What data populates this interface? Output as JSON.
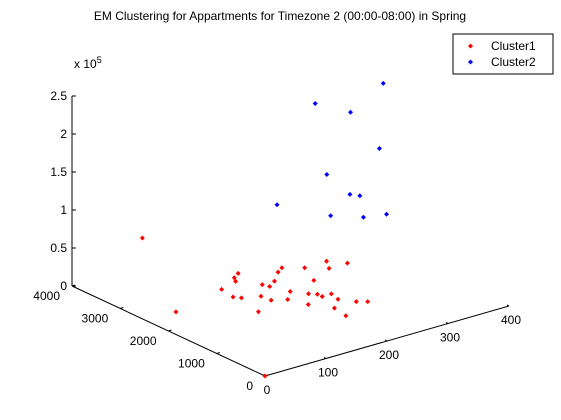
{
  "chart_data": {
    "type": "scatter",
    "dimensions": 3,
    "title": "EM Clustering for Appartments for Timezone 2 (00:00-08:00) in Spring",
    "z_multiplier_label": "x 10",
    "z_multiplier_exponent": "5",
    "xlim": [
      0,
      400
    ],
    "ylim": [
      0,
      4000
    ],
    "zlim": [
      0,
      250000
    ],
    "x_ticks": [
      "0",
      "100",
      "200",
      "300",
      "400"
    ],
    "y_ticks": [
      "0",
      "1000",
      "2000",
      "3000",
      "4000"
    ],
    "z_ticks": [
      "0",
      "0.5",
      "1",
      "1.5",
      "2",
      "2.5"
    ],
    "grid": false,
    "legend_position": "top-right",
    "series": [
      {
        "name": "Cluster1",
        "color": "#ff0000",
        "marker": "diamond",
        "points": [
          {
            "x": 0,
            "y": 0,
            "z": 0
          },
          {
            "x": 36,
            "y": 2300,
            "z": 8000
          },
          {
            "x": 60,
            "y": 3300,
            "z": 70000
          },
          {
            "x": 80,
            "y": 1500,
            "z": 40000
          },
          {
            "x": 90,
            "y": 1800,
            "z": 30000
          },
          {
            "x": 100,
            "y": 1900,
            "z": 50000
          },
          {
            "x": 110,
            "y": 2000,
            "z": 40000
          },
          {
            "x": 95,
            "y": 2100,
            "z": 30000
          },
          {
            "x": 120,
            "y": 1600,
            "z": 30000
          },
          {
            "x": 130,
            "y": 2200,
            "z": 40000
          },
          {
            "x": 130,
            "y": 1700,
            "z": 40000
          },
          {
            "x": 140,
            "y": 1500,
            "z": 60000
          },
          {
            "x": 100,
            "y": 1400,
            "z": 20000
          },
          {
            "x": 105,
            "y": 1200,
            "z": 40000
          },
          {
            "x": 150,
            "y": 1800,
            "z": 30000
          },
          {
            "x": 160,
            "y": 1200,
            "z": 70000
          },
          {
            "x": 150,
            "y": 1000,
            "z": 30000
          },
          {
            "x": 160,
            "y": 1500,
            "z": 30000
          },
          {
            "x": 140,
            "y": 1300,
            "z": 30000
          },
          {
            "x": 175,
            "y": 1200,
            "z": 50000
          },
          {
            "x": 170,
            "y": 1800,
            "z": 50000
          },
          {
            "x": 180,
            "y": 1000,
            "z": 80000
          },
          {
            "x": 180,
            "y": 900,
            "z": 40000
          },
          {
            "x": 165,
            "y": 1000,
            "z": 40000
          },
          {
            "x": 175,
            "y": 700,
            "z": 40000
          },
          {
            "x": 200,
            "y": 1200,
            "z": 60000
          },
          {
            "x": 150,
            "y": 1700,
            "z": 40000
          },
          {
            "x": 165,
            "y": 900,
            "z": 40000
          },
          {
            "x": 185,
            "y": 900,
            "z": 20000
          },
          {
            "x": 180,
            "y": 600,
            "z": 20000
          },
          {
            "x": 200,
            "y": 400,
            "z": 40000
          },
          {
            "x": 205,
            "y": 700,
            "z": 30000
          },
          {
            "x": 230,
            "y": 1200,
            "z": 60000
          },
          {
            "x": 190,
            "y": 1500,
            "z": 20000
          }
        ]
      },
      {
        "name": "Cluster2",
        "color": "#0000ff",
        "marker": "diamond",
        "points": [
          {
            "x": 170,
            "y": 1900,
            "z": 130000
          },
          {
            "x": 220,
            "y": 1500,
            "z": 170000
          },
          {
            "x": 250,
            "y": 1400,
            "z": 140000
          },
          {
            "x": 250,
            "y": 1800,
            "z": 100000
          },
          {
            "x": 280,
            "y": 1500,
            "z": 100000
          },
          {
            "x": 290,
            "y": 1700,
            "z": 120000
          },
          {
            "x": 310,
            "y": 1400,
            "z": 100000
          },
          {
            "x": 330,
            "y": 1800,
            "z": 170000
          },
          {
            "x": 330,
            "y": 2400,
            "z": 200000
          },
          {
            "x": 360,
            "y": 2100,
            "z": 240000
          },
          {
            "x": 280,
            "y": 2500,
            "z": 220000
          }
        ]
      }
    ]
  }
}
